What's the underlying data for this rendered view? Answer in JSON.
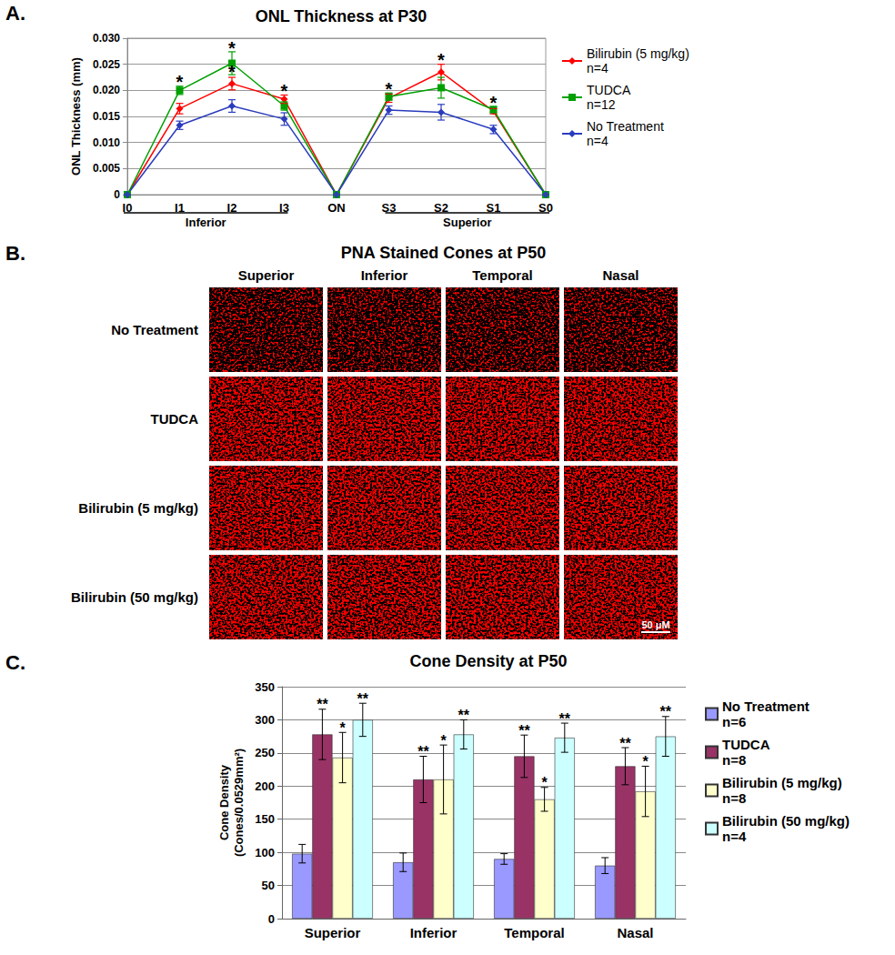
{
  "chart_data": [
    {
      "panel": "A.",
      "type": "line",
      "title": "ONL Thickness at P30",
      "y_label": "ONL Thickness (mm)",
      "categories": [
        "I0",
        "I1",
        "I2",
        "I3",
        "ON",
        "S3",
        "S2",
        "S1",
        "S0"
      ],
      "groups": [
        {
          "label": "Inferior",
          "from": "I0",
          "to": "I3"
        },
        {
          "label": "Superior",
          "from": "S3",
          "to": "S0"
        }
      ],
      "series": [
        {
          "name": "Bilirubin (5 mg/kg)",
          "n": "n=4",
          "color": "#ff0000",
          "marker": "diamond",
          "values": [
            0,
            0.0165,
            0.0213,
            0.0183,
            0,
            0.0185,
            0.0235,
            0.016,
            0
          ],
          "errors": [
            0,
            0.001,
            0.0012,
            0.0008,
            0,
            0.0008,
            0.0015,
            0.0005,
            0
          ]
        },
        {
          "name": "TUDCA",
          "n": "n=12",
          "color": "#00a000",
          "marker": "square",
          "values": [
            0,
            0.02,
            0.0252,
            0.017,
            0,
            0.0188,
            0.0205,
            0.0163,
            0
          ],
          "errors": [
            0,
            0.0008,
            0.0022,
            0.0008,
            0,
            0.0007,
            0.002,
            0.0006,
            0
          ]
        },
        {
          "name": "No Treatment",
          "n": "n=4",
          "color": "#2a3cbd",
          "marker": "diamond",
          "values": [
            0,
            0.0133,
            0.017,
            0.0145,
            0,
            0.0162,
            0.0158,
            0.0125,
            0
          ],
          "errors": [
            0,
            0.0008,
            0.0012,
            0.0012,
            0,
            0.0008,
            0.0015,
            0.0008,
            0
          ]
        }
      ],
      "annotations": [
        {
          "x": "I1",
          "y": 0.0212,
          "text": "*"
        },
        {
          "x": "I2",
          "y": 0.0278,
          "text": "*"
        },
        {
          "x": "I2",
          "y": 0.0232,
          "text": "*"
        },
        {
          "x": "I3",
          "y": 0.0195,
          "text": "*"
        },
        {
          "x": "S3",
          "y": 0.0198,
          "text": "*"
        },
        {
          "x": "S2",
          "y": 0.0255,
          "text": "*"
        },
        {
          "x": "S1",
          "y": 0.0172,
          "text": "*"
        }
      ],
      "ylim": [
        0,
        0.03
      ],
      "yticks": [
        0,
        0.005,
        {
          "value": 0.01,
          "label": "0.010"
        },
        0.015,
        {
          "value": 0.02,
          "label": "0.020"
        },
        0.025,
        {
          "value": 0.03,
          "label": "0.030"
        }
      ],
      "grid": true,
      "legend": "right"
    },
    {
      "panel": "B.",
      "type": "image_grid",
      "title": "PNA Stained Cones at P50",
      "columns": [
        "Superior",
        "Inferior",
        "Temporal",
        "Nasal"
      ],
      "rows": [
        "No Treatment",
        "TUDCA",
        "Bilirubin (5 mg/kg)",
        "Bilirubin (50 mg/kg)"
      ],
      "scale_bar": "50 μM"
    },
    {
      "panel": "C.",
      "type": "bar",
      "title": "Cone Density at P50",
      "y_label": "Cone Density\n(Cones/0.0529mm²)",
      "categories": [
        "Superior",
        "Inferior",
        "Temporal",
        "Nasal"
      ],
      "series": [
        {
          "name": "No Treatment",
          "n": "n=6",
          "color": "#9999ff",
          "values": [
            98,
            85,
            90,
            80
          ],
          "errors": [
            14,
            14,
            8,
            12
          ]
        },
        {
          "name": "TUDCA",
          "n": "n=8",
          "color": "#993366",
          "values": [
            278,
            210,
            245,
            230
          ],
          "errors": [
            38,
            35,
            32,
            28
          ],
          "significance": [
            "**",
            "**",
            "**",
            "**"
          ]
        },
        {
          "name": "Bilirubin (5 mg/kg)",
          "n": "n=8",
          "color": "#ffffcc",
          "values": [
            243,
            210,
            180,
            192
          ],
          "errors": [
            38,
            52,
            18,
            38
          ],
          "significance": [
            "*",
            "*",
            "*",
            "*"
          ]
        },
        {
          "name": "Bilirubin (50 mg/kg)",
          "n": "n=4",
          "color": "#ccffff",
          "values": [
            300,
            278,
            273,
            275
          ],
          "errors": [
            25,
            22,
            22,
            30
          ],
          "significance": [
            "**",
            "**",
            "**",
            "**"
          ]
        }
      ],
      "ylim": [
        0,
        350
      ],
      "yticks": [
        0,
        50,
        100,
        150,
        200,
        250,
        300,
        350
      ],
      "grid": true,
      "legend": "right"
    }
  ]
}
